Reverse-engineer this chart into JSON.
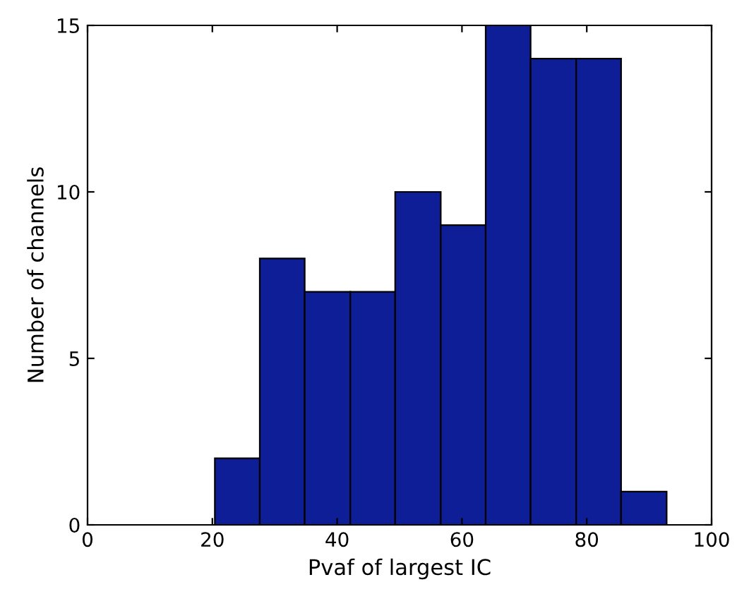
{
  "chart_data": {
    "type": "histogram",
    "xlabel": "Pvaf of largest IC",
    "ylabel": "Number of channels",
    "bins": [
      20.4,
      27.6,
      34.8,
      42.1,
      49.3,
      56.6,
      63.8,
      71.0,
      78.3,
      85.5,
      92.8
    ],
    "values": [
      2,
      8,
      7,
      7,
      10,
      9,
      15,
      14,
      14,
      1
    ],
    "color": "#0d1e96",
    "xlim": [
      0,
      100
    ],
    "xticks": [
      0,
      20,
      40,
      60,
      80,
      100
    ],
    "ylim": [
      0,
      15
    ],
    "yticks": [
      0,
      5,
      10,
      15
    ],
    "grid": false
  }
}
